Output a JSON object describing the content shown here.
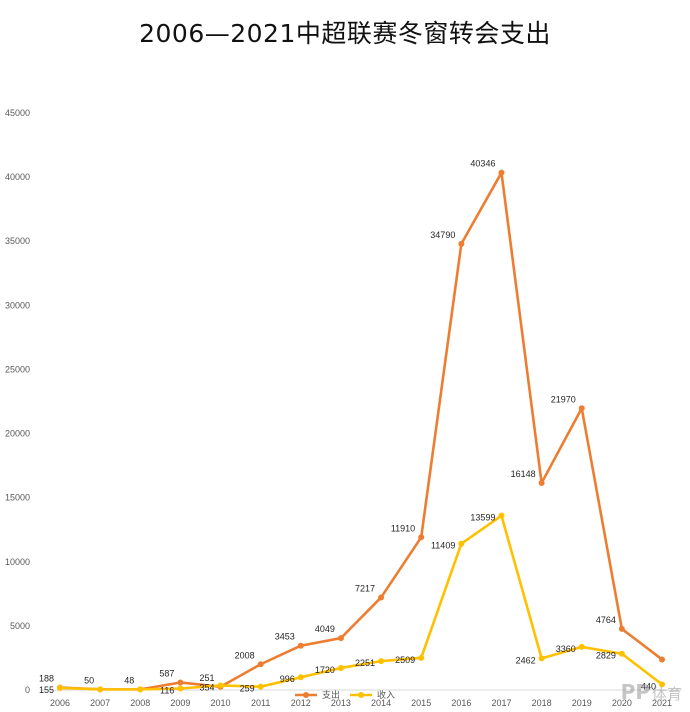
{
  "chart_data": {
    "type": "line",
    "title": "2006—2021中超联赛冬窗转会支出",
    "xlabel": "",
    "ylabel": "",
    "categories": [
      "2006",
      "2007",
      "2008",
      "2009",
      "2010",
      "2011",
      "2012",
      "2013",
      "2014",
      "2015",
      "2016",
      "2017",
      "2018",
      "2019",
      "2020",
      "2021"
    ],
    "ylim": [
      0,
      45000
    ],
    "yticks": [
      0,
      5000,
      10000,
      15000,
      20000,
      25000,
      30000,
      35000,
      40000,
      45000
    ],
    "grid": false,
    "legend_position": "bottom",
    "series": [
      {
        "name": "支出",
        "color": "#ED7D31",
        "values": [
          188,
          50,
          48,
          587,
          251,
          2008,
          3453,
          4049,
          7217,
          11910,
          34790,
          40346,
          16148,
          21970,
          4764,
          2381
        ],
        "labels": [
          "188",
          "50",
          "48",
          "587",
          "251",
          "2008",
          "3453",
          "4049",
          "7217",
          "11910",
          "34790",
          "40346",
          "16148",
          "21970",
          "4764",
          ""
        ]
      },
      {
        "name": "收入",
        "color": "#FFC000",
        "values": [
          155,
          50,
          48,
          116,
          354,
          259,
          996,
          1720,
          2251,
          2509,
          11409,
          13599,
          2462,
          3360,
          2829,
          440
        ],
        "labels": [
          "155",
          "",
          "",
          "116",
          "354",
          "259",
          "996",
          "1720",
          "2251",
          "2509",
          "11409",
          "13599",
          "2462",
          "3360",
          "2829",
          "440"
        ]
      }
    ]
  },
  "watermark": {
    "logo": "PP",
    "text": "体育"
  }
}
